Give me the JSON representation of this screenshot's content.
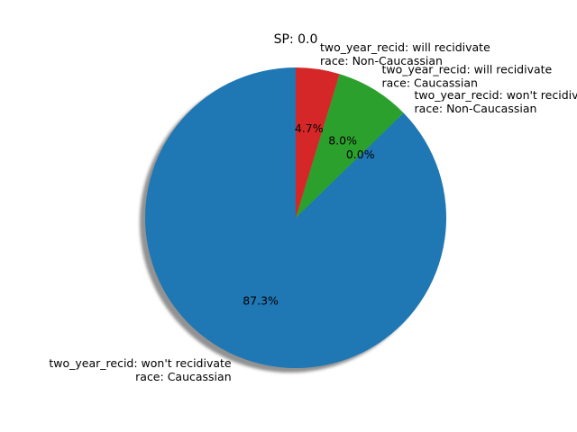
{
  "chart_data": {
    "type": "pie",
    "title": "SP: 0.0",
    "shadow": true,
    "start_angle_deg": 90,
    "direction": "counterclockwise",
    "slices": [
      {
        "label_lines": [
          "two_year_recid: won't recidivate",
          "race: Caucassian"
        ],
        "value": 87.3,
        "pct_label": "87.3%",
        "color": "#1f77b4"
      },
      {
        "label_lines": [
          "two_year_recid: won't recidivate",
          "race: Non-Caucassian"
        ],
        "value": 0.0,
        "pct_label": "0.0%",
        "color": "#ff7f0e"
      },
      {
        "label_lines": [
          "two_year_recid: will recidivate",
          "race: Caucassian"
        ],
        "value": 8.0,
        "pct_label": "8.0%",
        "color": "#2ca02c"
      },
      {
        "label_lines": [
          "two_year_recid: will recidivate",
          "race: Non-Caucassian"
        ],
        "value": 4.7,
        "pct_label": "4.7%",
        "color": "#d62728"
      }
    ]
  }
}
